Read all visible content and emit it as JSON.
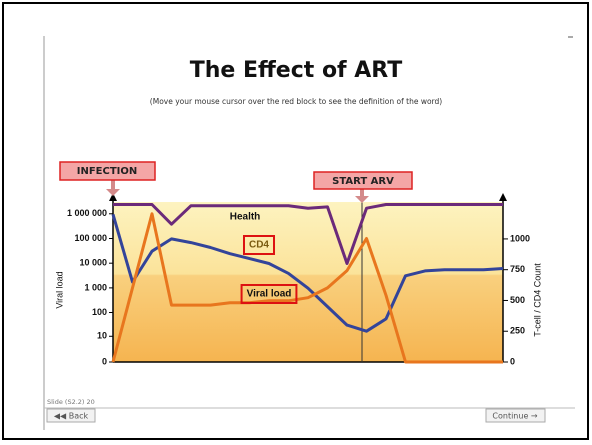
{
  "slide": {
    "title": "The Effect of ART",
    "subtitle": "(Move your mouse cursor over the red block to see the definition of the word)",
    "footer": "Slide (S2.2) 20",
    "back": "◀◀ Back",
    "continue": "Continue →"
  },
  "chart_data": {
    "type": "line",
    "annotations": [
      "INFECTION",
      "START ARV"
    ],
    "y_label": "Viral load",
    "y2_label": "T-cell / CD4 Count",
    "yscale": "log",
    "ylim": [
      0,
      3000000
    ],
    "yticks": [
      {
        "value": 1000000,
        "label": "1 000 000"
      },
      {
        "value": 100000,
        "label": "100 000"
      },
      {
        "value": 10000,
        "label": "10 000"
      },
      {
        "value": 1000,
        "label": "1 000"
      },
      100,
      10,
      0
    ],
    "y2lim": [
      0,
      1300
    ],
    "y2ticks": [
      0,
      250,
      500,
      750,
      1000
    ],
    "series": [
      {
        "name": "Health",
        "color": "#6b2a7a",
        "axis": "y2",
        "values": [
          1280,
          1280,
          1280,
          1120,
          1270,
          1270,
          1270,
          1270,
          1270,
          1270,
          1250,
          1260,
          800,
          1250,
          1280,
          1280,
          1280,
          1280,
          1280,
          1280,
          1280
        ]
      },
      {
        "name": "CD4",
        "color": "#33449a",
        "axis": "y2",
        "values": [
          1200,
          650,
          900,
          1000,
          970,
          930,
          880,
          840,
          800,
          720,
          600,
          450,
          300,
          250,
          350,
          700,
          740,
          750,
          750,
          750,
          760
        ]
      },
      {
        "name": "Viral load",
        "color": "#e8761e",
        "values": [
          0,
          1000,
          1000000,
          200,
          200,
          200,
          250,
          250,
          300,
          300,
          400,
          1000,
          5000,
          100000,
          500,
          0,
          0,
          0,
          0,
          0,
          0
        ]
      }
    ]
  }
}
